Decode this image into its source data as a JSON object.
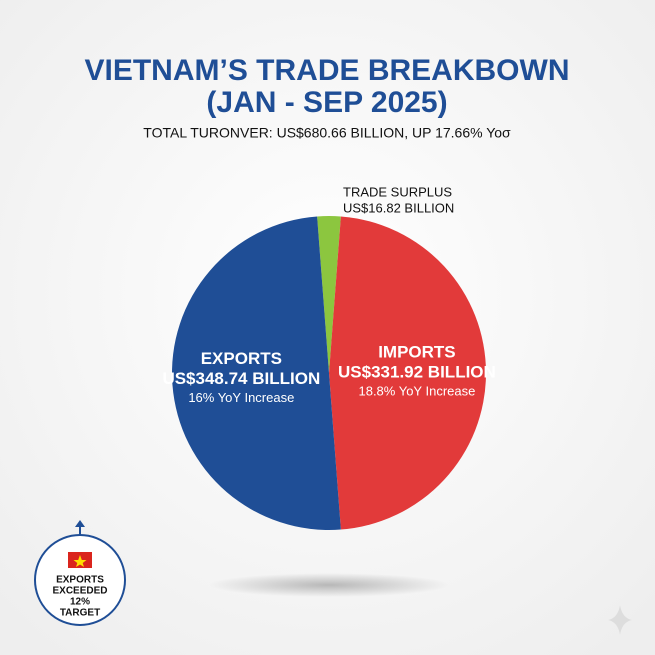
{
  "chart_data": {
    "type": "pie",
    "title": "VIETNAM’S TRADE BREAKBOWN",
    "title_line2": "(JAN - SEP 2025)",
    "subtitle": "TOTAL TURONVER: US$680.66 BILLION, UP 17.66% Yoσ",
    "categories": [
      "TRADE SURPLUS",
      "IMPORTS",
      "EXPORTS"
    ],
    "values": [
      16.82,
      331.92,
      348.74
    ],
    "value_labels": [
      "US$16.82 BILLION",
      "US$331.92 BILLION",
      "US$348.74 BILLION"
    ],
    "sublabels": [
      null,
      "18.8% YoY Increase",
      "16% YoY Increase"
    ],
    "colors": [
      "#8cc63f",
      "#e23a3a",
      "#1f4e96"
    ],
    "annotation": [
      "EXPORTS",
      "EXCEEDED",
      "12%",
      "TARGET"
    ]
  }
}
